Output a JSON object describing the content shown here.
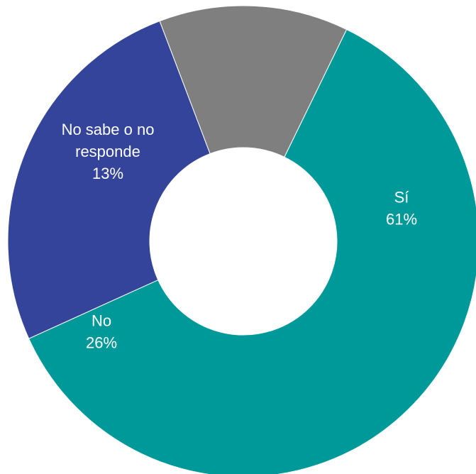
{
  "chart_data": {
    "type": "pie",
    "donut": true,
    "categories": [
      "Sí",
      "No",
      "No sabe o no responde"
    ],
    "values": [
      61,
      26,
      13
    ],
    "value_labels": [
      "61%",
      "26%",
      "13%"
    ],
    "label_lines": [
      [
        "Sí"
      ],
      [
        "No"
      ],
      [
        "No sabe o no",
        "responde"
      ]
    ],
    "colors": [
      "#009999",
      "#33449A",
      "#7F7F7F"
    ],
    "start_angle_deg": 26,
    "direction": "clockwise",
    "title": "",
    "legend": "none"
  }
}
